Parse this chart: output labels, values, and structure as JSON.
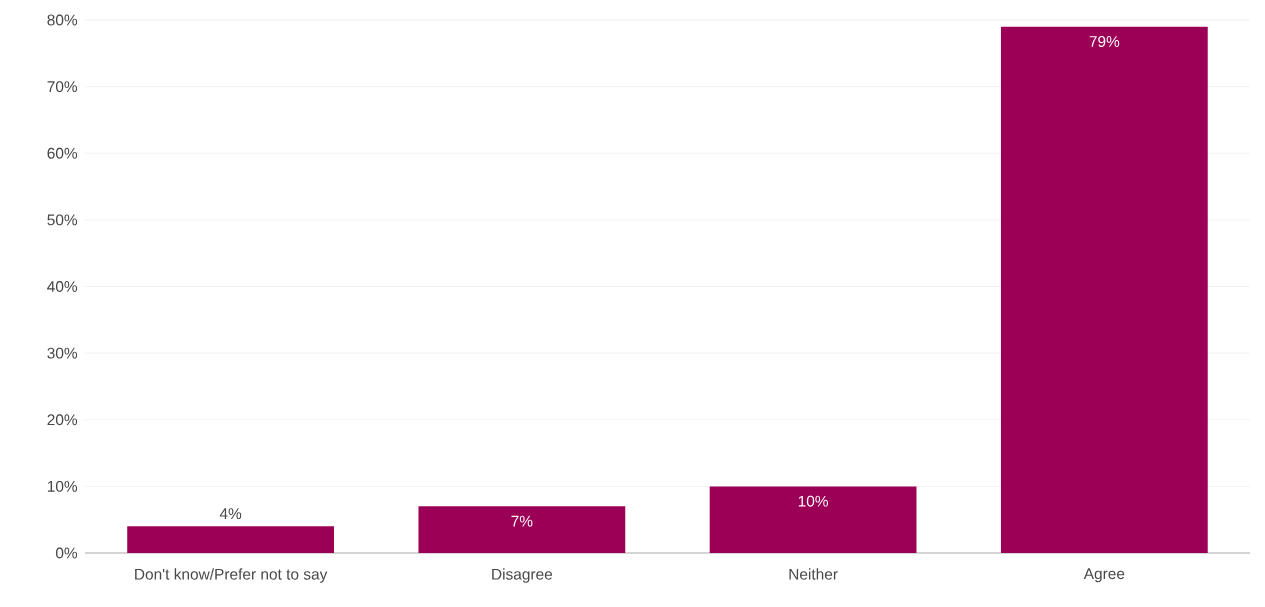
{
  "chart_data": {
    "type": "bar",
    "categories": [
      "Don't know/Prefer not to say",
      "Disagree",
      "Neither",
      "Agree"
    ],
    "values": [
      4,
      7,
      10,
      79
    ],
    "value_labels": [
      "4%",
      "7%",
      "10%",
      "79%"
    ],
    "color": "#9b0056",
    "ylim": [
      0,
      80
    ],
    "yticks": [
      {
        "value": 0,
        "label": "0%"
      },
      {
        "value": 10,
        "label": "10%"
      },
      {
        "value": 20,
        "label": "20%"
      },
      {
        "value": 30,
        "label": "30%"
      },
      {
        "value": 40,
        "label": "40%"
      },
      {
        "value": 50,
        "label": "50%"
      },
      {
        "value": 60,
        "label": "60%"
      },
      {
        "value": 70,
        "label": "70%"
      },
      {
        "value": 80,
        "label": "80%"
      }
    ],
    "grid": "y"
  }
}
